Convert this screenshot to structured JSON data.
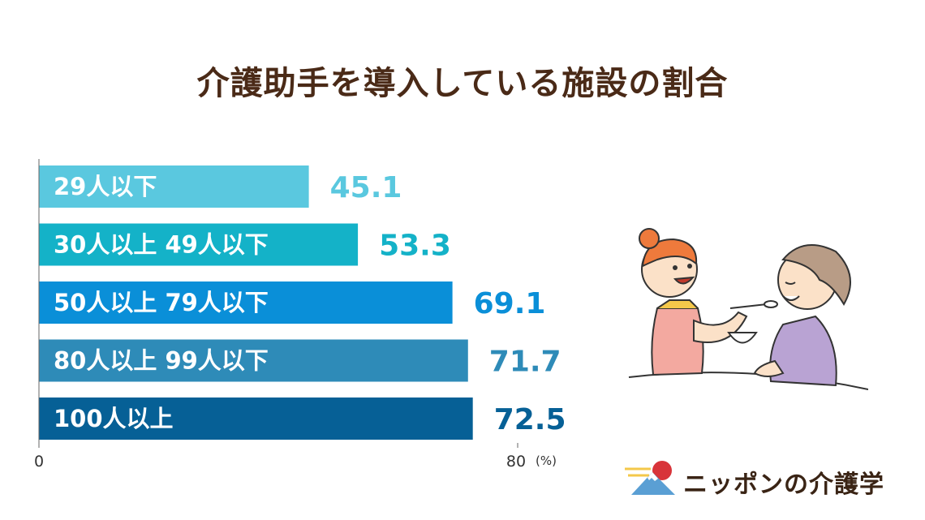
{
  "chart_data": {
    "type": "bar",
    "orientation": "horizontal",
    "title": "介護助手を導入している施設の割合",
    "categories": [
      "29人以下",
      "30人以上 49人以下",
      "50人以上 79人以下",
      "80人以上 99人以下",
      "100人以上"
    ],
    "values": [
      45.1,
      53.3,
      69.1,
      71.7,
      72.5
    ],
    "value_labels": [
      "45.1",
      "53.3",
      "69.1",
      "71.7",
      "72.5"
    ],
    "colors": [
      "#5ac8df",
      "#14b2c8",
      "#0a8fd8",
      "#2e8bb8",
      "#066096"
    ],
    "xlim": [
      0,
      80
    ],
    "x_ticks": [
      "0",
      "80"
    ],
    "x_unit": "(%)"
  },
  "brand": {
    "name": "ニッポンの介護学"
  }
}
